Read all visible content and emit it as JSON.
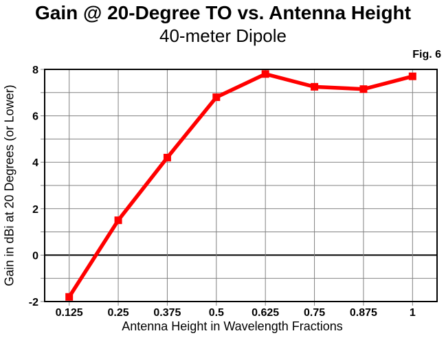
{
  "chart_data": {
    "type": "line",
    "title": "Gain @ 20-Degree TO vs. Antenna Height",
    "subtitle": "40-meter Dipole",
    "fig_label": "Fig. 6",
    "xlabel": "Antenna Height in Wavelength Fractions",
    "ylabel": "Gain in dBi at 20 Degrees (or Lower)",
    "categories": [
      "0.125",
      "0.25",
      "0.375",
      "0.5",
      "0.625",
      "0.75",
      "0.875",
      "1"
    ],
    "values": [
      -1.8,
      1.5,
      4.2,
      6.8,
      7.8,
      7.25,
      7.15,
      7.7
    ],
    "ylim": [
      -2,
      8
    ],
    "y_ticks": [
      -2,
      0,
      2,
      4,
      6,
      8
    ],
    "y_grid_step": 1,
    "grid": true,
    "legend": false,
    "marker": "square",
    "colors": {
      "line": "#FF0000",
      "grid": "#808080",
      "axis": "#000000",
      "zero_line": "#000000",
      "background": "#FFFFFF",
      "text": "#000000"
    }
  }
}
